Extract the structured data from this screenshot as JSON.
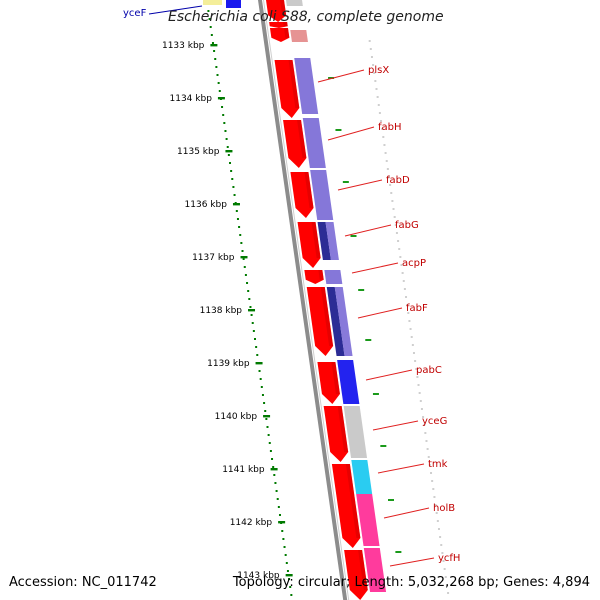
{
  "header": {
    "title": "Escherichia coli S88, complete genome"
  },
  "footer": {
    "accession": "Accession: NC_011742",
    "stats": "Topology: circular; Length: 5,032,268 bp; Genes: 4,894"
  },
  "colors": {
    "cds": "#ff0000",
    "backbone": "#8c8c8c",
    "ruler_dots": "#007a00",
    "gene_label": "#c00000",
    "gene_line": "#e02020",
    "blue_label": "#0000aa",
    "cog_violet": "#7b6bd6",
    "cog_navy": "#1a1a8c",
    "cog_blue": "#1010ee",
    "cog_gray": "#c6c6c6",
    "cog_cyan": "#18c8f0",
    "cog_magenta": "#ff2a95"
  },
  "ruler": {
    "ticks": [
      "1133 kbp",
      "1134 kbp",
      "1135 kbp",
      "1136 kbp",
      "1137 kbp",
      "1138 kbp",
      "1139 kbp",
      "1140 kbp",
      "1141 kbp",
      "1142 kbp",
      "1143 kbp"
    ]
  },
  "genes": [
    {
      "name": "yceF",
      "color": "blue_label"
    },
    {
      "name": "plsX",
      "color": "gene_label"
    },
    {
      "name": "fabH",
      "color": "gene_label"
    },
    {
      "name": "fabD",
      "color": "gene_label"
    },
    {
      "name": "fabG",
      "color": "gene_label"
    },
    {
      "name": "acpP",
      "color": "gene_label"
    },
    {
      "name": "fabF",
      "color": "gene_label"
    },
    {
      "name": "pabC",
      "color": "gene_label"
    },
    {
      "name": "yceG",
      "color": "gene_label"
    },
    {
      "name": "tmk",
      "color": "gene_label"
    },
    {
      "name": "holB",
      "color": "gene_label"
    },
    {
      "name": "ycfH",
      "color": "gene_label"
    }
  ]
}
